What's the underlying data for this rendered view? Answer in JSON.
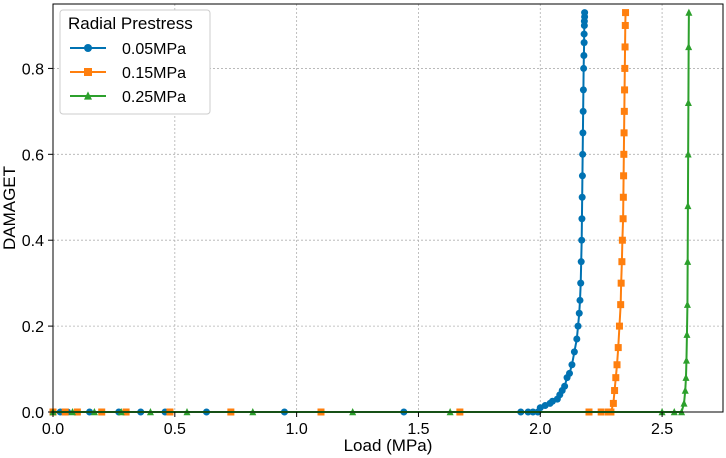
{
  "chart_data": {
    "type": "line",
    "xlabel": "Load (MPa)",
    "ylabel": "DAMAGET",
    "xlim": [
      0.0,
      2.75
    ],
    "ylim": [
      0.0,
      0.95
    ],
    "xticks": [
      "0.0",
      "0.5",
      "1.0",
      "1.5",
      "2.0",
      "2.5"
    ],
    "xtick_values": [
      0.0,
      0.5,
      1.0,
      1.5,
      2.0,
      2.5
    ],
    "yticks": [
      "0.0",
      "0.2",
      "0.4",
      "0.6",
      "0.8"
    ],
    "ytick_values": [
      0.0,
      0.2,
      0.4,
      0.6,
      0.8
    ],
    "grid": true,
    "legend": {
      "title": "Radial Prestress",
      "placement": "top-left"
    },
    "series": [
      {
        "name": "0.05MPa",
        "color": "#0072b2",
        "marker": "circle",
        "x": [
          0.0,
          0.03,
          0.06,
          0.1,
          0.15,
          0.2,
          0.27,
          0.36,
          0.46,
          0.63,
          0.95,
          1.44,
          1.92,
          1.95,
          1.97,
          1.99,
          2.0,
          2.02,
          2.04,
          2.05,
          2.07,
          2.08,
          2.09,
          2.1,
          2.11,
          2.12,
          2.13,
          2.14,
          2.15,
          2.155,
          2.16,
          2.163,
          2.166,
          2.168,
          2.17,
          2.171,
          2.172,
          2.173,
          2.174,
          2.175,
          2.176,
          2.177,
          2.178,
          2.179,
          2.18,
          2.18,
          2.181,
          2.181,
          2.182,
          2.182
        ],
        "y": [
          0.0,
          0.0,
          0.0,
          0.0,
          0.0,
          0.0,
          0.0,
          0.0,
          0.0,
          0.0,
          0.0,
          0.0,
          0.0,
          0.0,
          0.0,
          0.0,
          0.01,
          0.015,
          0.02,
          0.025,
          0.03,
          0.04,
          0.05,
          0.06,
          0.08,
          0.09,
          0.11,
          0.14,
          0.17,
          0.2,
          0.23,
          0.26,
          0.3,
          0.35,
          0.4,
          0.45,
          0.5,
          0.55,
          0.6,
          0.65,
          0.7,
          0.75,
          0.8,
          0.83,
          0.86,
          0.88,
          0.9,
          0.91,
          0.92,
          0.93
        ]
      },
      {
        "name": "0.15MPa",
        "color": "#ff7f0e",
        "marker": "square",
        "x": [
          0.0,
          0.05,
          0.1,
          0.2,
          0.3,
          0.48,
          0.73,
          1.1,
          1.67,
          2.2,
          2.25,
          2.28,
          2.29,
          2.3,
          2.305,
          2.31,
          2.315,
          2.32,
          2.325,
          2.33,
          2.332,
          2.335,
          2.337,
          2.34,
          2.341,
          2.342,
          2.343,
          2.344,
          2.345,
          2.346,
          2.347,
          2.348,
          2.349,
          2.35
        ],
        "y": [
          0.0,
          0.0,
          0.0,
          0.0,
          0.0,
          0.0,
          0.0,
          0.0,
          0.0,
          0.0,
          0.0,
          0.0,
          0.0,
          0.02,
          0.05,
          0.08,
          0.11,
          0.15,
          0.2,
          0.25,
          0.3,
          0.35,
          0.4,
          0.45,
          0.5,
          0.55,
          0.6,
          0.65,
          0.7,
          0.75,
          0.8,
          0.85,
          0.9,
          0.93
        ]
      },
      {
        "name": "0.25MPa",
        "color": "#2ca02c",
        "marker": "triangle",
        "x": [
          0.0,
          0.08,
          0.17,
          0.28,
          0.4,
          0.55,
          0.82,
          1.23,
          1.63,
          2.5,
          2.55,
          2.58,
          2.59,
          2.595,
          2.598,
          2.6,
          2.602,
          2.604,
          2.605,
          2.606,
          2.607,
          2.608,
          2.609,
          2.61
        ],
        "y": [
          0.0,
          0.0,
          0.0,
          0.0,
          0.0,
          0.0,
          0.0,
          0.0,
          0.0,
          0.0,
          0.0,
          0.0,
          0.02,
          0.05,
          0.08,
          0.12,
          0.18,
          0.25,
          0.35,
          0.48,
          0.6,
          0.72,
          0.85,
          0.93
        ]
      }
    ]
  }
}
